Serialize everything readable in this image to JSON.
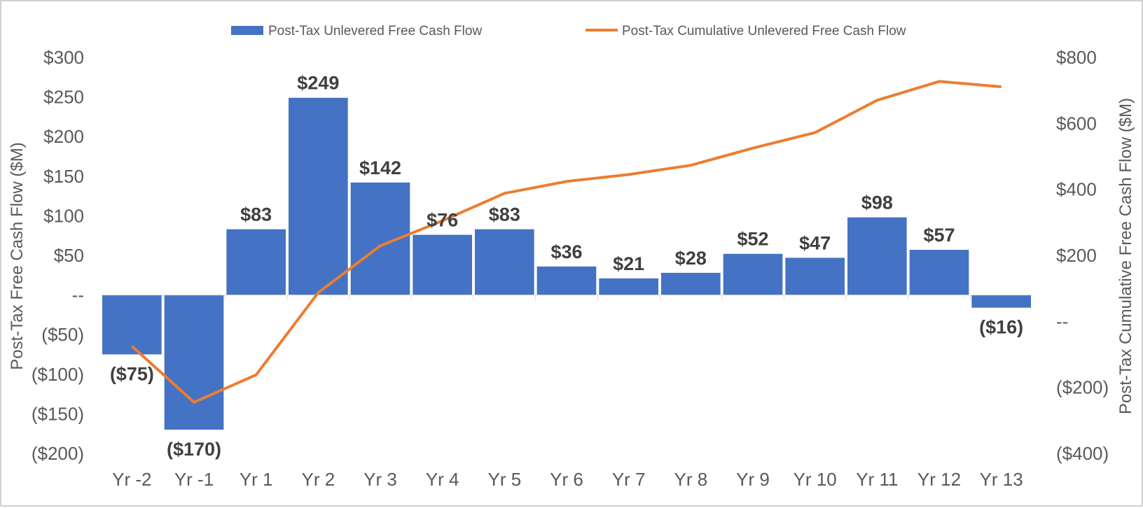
{
  "chart_data": {
    "type": "bar",
    "categories": [
      "Yr -2",
      "Yr -1",
      "Yr 1",
      "Yr 2",
      "Yr 3",
      "Yr 4",
      "Yr 5",
      "Yr 6",
      "Yr 7",
      "Yr 8",
      "Yr 9",
      "Yr 10",
      "Yr 11",
      "Yr 12",
      "Yr 13"
    ],
    "series": [
      {
        "name": "Post-Tax Unlevered Free Cash Flow",
        "type": "bar",
        "axis": "left",
        "color": "#4472C4",
        "values": [
          -75,
          -170,
          83,
          249,
          142,
          76,
          83,
          36,
          21,
          28,
          52,
          47,
          98,
          57,
          -16
        ],
        "labels": [
          "($75)",
          "($170)",
          "$83",
          "$249",
          "$142",
          "$76",
          "$83",
          "$36",
          "$21",
          "$28",
          "$52",
          "$47",
          "$98",
          "$57",
          "($16)"
        ]
      },
      {
        "name": "Post-Tax Cumulative Unlevered Free Cash Flow",
        "type": "line",
        "axis": "right",
        "color": "#ED7D31",
        "values": [
          -75,
          -245,
          -162,
          87,
          229,
          305,
          388,
          424,
          445,
          473,
          525,
          572,
          670,
          727,
          711
        ]
      }
    ],
    "y_left": {
      "label": "Post-Tax Free Cash Flow ($M)",
      "range": [
        -200,
        300
      ],
      "ticks": [
        300,
        250,
        200,
        150,
        100,
        50,
        0,
        -50,
        -100,
        -150,
        -200
      ],
      "tick_labels": [
        "$300",
        "$250",
        "$200",
        "$150",
        "$100",
        "$50",
        "--",
        "($50)",
        "($100)",
        "($150)",
        "($200)"
      ]
    },
    "y_right": {
      "label": "Post-Tax Cumulative  Free Cash Flow ($M)",
      "range": [
        -400,
        800
      ],
      "ticks": [
        800,
        600,
        400,
        200,
        0,
        -200,
        -400
      ],
      "tick_labels": [
        "$800",
        "$600",
        "$400",
        "$200",
        "--",
        "($200)",
        "($400)"
      ]
    },
    "legend_position": "top",
    "grid": false
  }
}
